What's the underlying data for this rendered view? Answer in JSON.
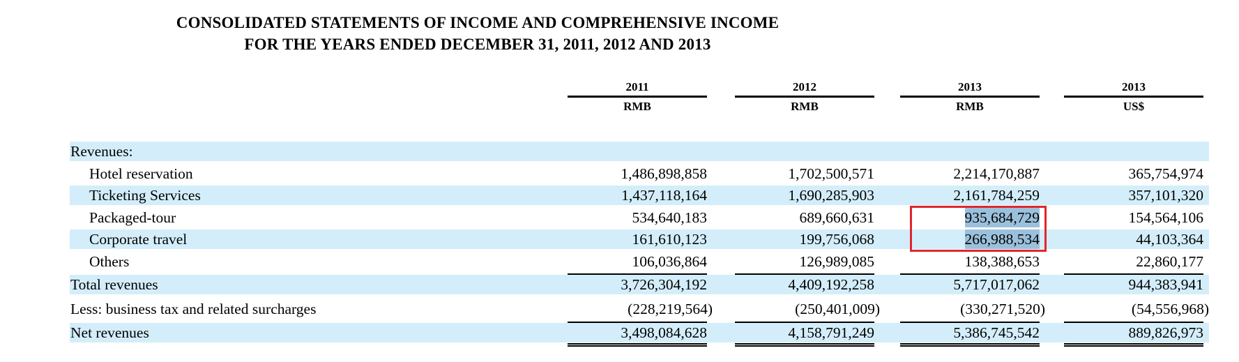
{
  "title_line1": "CONSOLIDATED STATEMENTS OF INCOME AND COMPREHENSIVE INCOME",
  "title_line2": "FOR THE YEARS ENDED DECEMBER 31, 2011, 2012 AND 2013",
  "columns": [
    {
      "year": "2011",
      "currency": "RMB"
    },
    {
      "year": "2012",
      "currency": "RMB"
    },
    {
      "year": "2013",
      "currency": "RMB"
    },
    {
      "year": "2013",
      "currency": "US$"
    }
  ],
  "rows": [
    {
      "label": "Revenues:",
      "values": [
        "",
        "",
        "",
        ""
      ]
    },
    {
      "label": "Hotel reservation",
      "values": [
        "1,486,898,858",
        "1,702,500,571",
        "2,214,170,887",
        "365,754,974"
      ]
    },
    {
      "label": "Ticketing Services",
      "values": [
        "1,437,118,164",
        "1,690,285,903",
        "2,161,784,259",
        "357,101,320"
      ]
    },
    {
      "label": "Packaged-tour",
      "values": [
        "534,640,183",
        "689,660,631",
        "935,684,729",
        "154,564,106"
      ]
    },
    {
      "label": "Corporate travel",
      "values": [
        "161,610,123",
        "199,756,068",
        "266,988,534",
        "44,103,364"
      ]
    },
    {
      "label": "Others",
      "values": [
        "106,036,864",
        "126,989,085",
        "138,388,653",
        "22,860,177"
      ]
    },
    {
      "label": "Total revenues",
      "values": [
        "3,726,304,192",
        "4,409,192,258",
        "5,717,017,062",
        "944,383,941"
      ]
    },
    {
      "label": "Less: business tax and related surcharges",
      "values": [
        "(228,219,564)",
        "(250,401,009)",
        "(330,271,520)",
        "(54,556,968)"
      ]
    },
    {
      "label": "Net revenues",
      "values": [
        "3,498,084,628",
        "4,158,791,249",
        "5,386,745,542",
        "889,826,973"
      ]
    }
  ],
  "highlight_color": "#9bc0dc",
  "row_shade_color": "#d3eefa",
  "annotation_box_color": "#e0262d"
}
